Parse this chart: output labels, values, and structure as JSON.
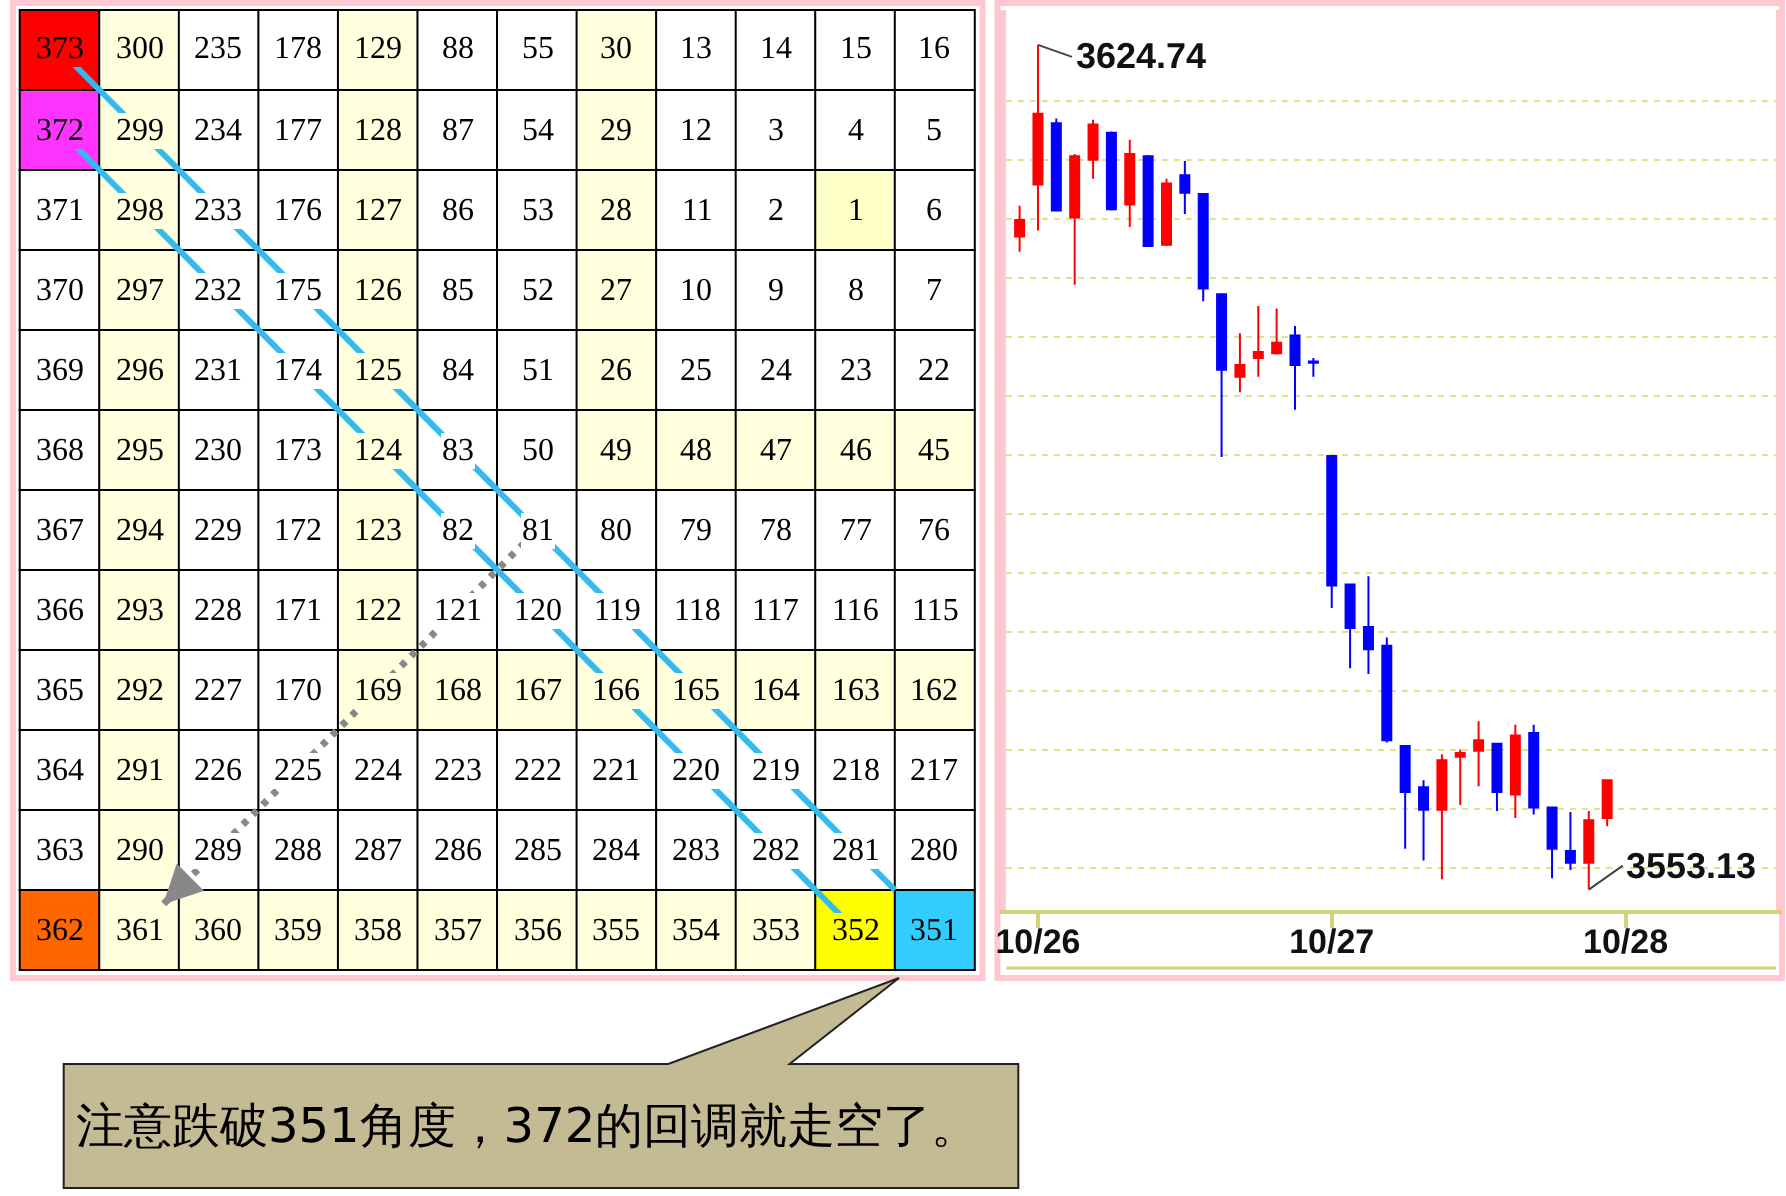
{
  "chart_data": [
    {
      "type": "heatmap",
      "categories": [
        null,
        null,
        null,
        null,
        null,
        null,
        null,
        null,
        null,
        null,
        null,
        null
      ],
      "y_categories": [
        null,
        null,
        null,
        null,
        null,
        null,
        null,
        null,
        null,
        null,
        null,
        null
      ],
      "cells": [
        [
          373,
          300,
          235,
          178,
          129,
          88,
          55,
          30,
          13,
          14,
          15,
          16
        ],
        [
          372,
          299,
          234,
          177,
          128,
          87,
          54,
          29,
          12,
          3,
          4,
          5
        ],
        [
          371,
          298,
          233,
          176,
          127,
          86,
          53,
          28,
          11,
          2,
          1,
          6
        ],
        [
          370,
          297,
          232,
          175,
          126,
          85,
          52,
          27,
          10,
          9,
          8,
          7
        ],
        [
          369,
          296,
          231,
          174,
          125,
          84,
          51,
          26,
          25,
          24,
          23,
          22
        ],
        [
          368,
          295,
          230,
          173,
          124,
          83,
          50,
          49,
          48,
          47,
          46,
          45
        ],
        [
          367,
          294,
          229,
          172,
          123,
          82,
          81,
          80,
          79,
          78,
          77,
          76
        ],
        [
          366,
          293,
          228,
          171,
          122,
          121,
          120,
          119,
          118,
          117,
          116,
          115
        ],
        [
          365,
          292,
          227,
          170,
          169,
          168,
          167,
          166,
          165,
          164,
          163,
          162
        ],
        [
          364,
          291,
          226,
          225,
          224,
          223,
          222,
          221,
          220,
          219,
          218,
          217
        ],
        [
          363,
          290,
          289,
          288,
          287,
          286,
          285,
          284,
          283,
          282,
          281,
          280
        ],
        [
          362,
          361,
          360,
          359,
          358,
          357,
          356,
          355,
          354,
          353,
          352,
          351
        ]
      ],
      "colors": [
        [
          "#ff0000",
          "#ffffde",
          "#ffffff",
          "#ffffff",
          "#ffffde",
          "#ffffff",
          "#ffffff",
          "#ffffde",
          "#ffffff",
          "#ffffff",
          "#ffffff",
          "#ffffff"
        ],
        [
          "#ff33ff",
          "#ffffde",
          "#ffffff",
          "#ffffff",
          "#ffffde",
          "#ffffff",
          "#ffffff",
          "#ffffde",
          "#ffffff",
          "#ffffff",
          "#ffffff",
          "#ffffff"
        ],
        [
          "#ffffff",
          "#ffffde",
          "#ffffff",
          "#ffffff",
          "#ffffde",
          "#ffffff",
          "#ffffff",
          "#ffffde",
          "#ffffff",
          "#ffffff",
          "#ffffc8",
          "#ffffff"
        ],
        [
          "#ffffff",
          "#ffffde",
          "#ffffff",
          "#ffffff",
          "#ffffde",
          "#ffffff",
          "#ffffff",
          "#ffffde",
          "#ffffff",
          "#ffffff",
          "#ffffff",
          "#ffffff"
        ],
        [
          "#ffffff",
          "#ffffde",
          "#ffffff",
          "#ffffff",
          "#ffffde",
          "#ffffff",
          "#ffffff",
          "#ffffde",
          "#ffffff",
          "#ffffff",
          "#ffffff",
          "#ffffff"
        ],
        [
          "#ffffff",
          "#ffffde",
          "#ffffff",
          "#ffffff",
          "#ffffde",
          "#ffffff",
          "#ffffff",
          "#ffffde",
          "#ffffde",
          "#ffffde",
          "#ffffde",
          "#ffffde"
        ],
        [
          "#ffffff",
          "#ffffde",
          "#ffffff",
          "#ffffff",
          "#ffffde",
          "#ffffff",
          "#ffffff",
          "#ffffff",
          "#ffffff",
          "#ffffff",
          "#ffffff",
          "#ffffff"
        ],
        [
          "#ffffff",
          "#ffffde",
          "#ffffff",
          "#ffffff",
          "#ffffde",
          "#ffffff",
          "#ffffff",
          "#ffffff",
          "#ffffff",
          "#ffffff",
          "#ffffff",
          "#ffffff"
        ],
        [
          "#ffffff",
          "#ffffde",
          "#ffffff",
          "#ffffff",
          "#ffffde",
          "#ffffde",
          "#ffffde",
          "#ffffde",
          "#ffffde",
          "#ffffde",
          "#ffffde",
          "#ffffde"
        ],
        [
          "#ffffff",
          "#ffffde",
          "#ffffff",
          "#ffffff",
          "#ffffff",
          "#ffffff",
          "#ffffff",
          "#ffffff",
          "#ffffff",
          "#ffffff",
          "#ffffff",
          "#ffffff"
        ],
        [
          "#ffffff",
          "#ffffde",
          "#ffffff",
          "#ffffff",
          "#ffffff",
          "#ffffff",
          "#ffffff",
          "#ffffff",
          "#ffffff",
          "#ffffff",
          "#ffffff",
          "#ffffff"
        ],
        [
          "#ff6600",
          "#ffffde",
          "#ffffde",
          "#ffffde",
          "#ffffde",
          "#ffffde",
          "#ffffde",
          "#ffffde",
          "#ffffde",
          "#ffffde",
          "#ffff00",
          "#33ccff"
        ]
      ],
      "data_labels": true,
      "tick_labels": false,
      "annotations": [
        "注意跌破351角度，372的回调就走空了。"
      ]
    },
    {
      "type": "candlestick",
      "categories": [
        null,
        "10/26",
        null,
        null,
        null,
        null,
        null,
        null,
        null,
        null,
        null,
        null,
        null,
        null,
        null,
        null,
        null,
        "10/27",
        null,
        null,
        null,
        null,
        null,
        null,
        null,
        null,
        null,
        null,
        null,
        null,
        null,
        null,
        null,
        "10/28"
      ],
      "ohlc": [
        [
          3608.5,
          3611.1,
          3607.2,
          3609.9
        ],
        [
          3612.9,
          3624.74,
          3609.0,
          3618.9
        ],
        [
          3618.1,
          3618.5,
          3610.7,
          3610.7
        ],
        [
          3610.1,
          3615.5,
          3604.4,
          3615.3
        ],
        [
          3615.0,
          3618.4,
          3613.4,
          3618.0
        ],
        [
          3617.3,
          3617.4,
          3610.7,
          3610.8
        ],
        [
          3611.2,
          3616.7,
          3609.3,
          3615.5
        ],
        [
          3615.3,
          3615.4,
          3607.7,
          3607.7
        ],
        [
          3607.8,
          3613.4,
          3607.7,
          3613.0
        ],
        [
          3613.7,
          3614.9,
          3610.4,
          3612.2
        ],
        [
          3612.1,
          3612.1,
          3603.0,
          3604.1
        ],
        [
          3603.6,
          3603.6,
          3589.8,
          3597.2
        ],
        [
          3596.6,
          3600.3,
          3595.3,
          3597.6
        ],
        [
          3598.2,
          3602.6,
          3596.6,
          3598.7
        ],
        [
          3598.6,
          3602.4,
          3598.5,
          3599.5
        ],
        [
          3600.1,
          3600.9,
          3593.8,
          3597.6
        ],
        [
          3597.9,
          3598.2,
          3596.6,
          3597.8
        ],
        [
          3589.9,
          3589.9,
          3577.0,
          3578.9
        ],
        [
          3579.0,
          3579.0,
          3571.9,
          3575.3
        ],
        [
          3575.4,
          3579.7,
          3571.4,
          3573.5
        ],
        [
          3573.8,
          3574.5,
          3565.6,
          3565.8
        ],
        [
          3565.3,
          3565.3,
          3556.6,
          3561.4
        ],
        [
          3561.8,
          3562.4,
          3555.6,
          3559.9
        ],
        [
          3559.9,
          3564.6,
          3554.0,
          3564.1
        ],
        [
          3564.4,
          3565.0,
          3560.3,
          3564.7
        ],
        [
          3564.9,
          3567.4,
          3561.9,
          3565.8
        ],
        [
          3565.5,
          3565.5,
          3559.8,
          3561.4
        ],
        [
          3561.2,
          3567.1,
          3559.2,
          3566.2
        ],
        [
          3566.4,
          3567.1,
          3559.5,
          3560.1
        ],
        [
          3560.1,
          3560.1,
          3554.1,
          3556.6
        ],
        [
          3556.4,
          3559.7,
          3554.8,
          3555.4
        ],
        [
          3555.4,
          3559.8,
          3553.13,
          3559.0
        ],
        [
          3559.2,
          3562.4,
          3558.5,
          3562.4
        ],
        null
      ],
      "colors": [
        "#ff0000",
        "#ff0000",
        "#0000ff",
        "#ff0000",
        "#ff0000",
        "#0000ff",
        "#ff0000",
        "#0000ff",
        "#ff0000",
        "#0000ff",
        "#0000ff",
        "#0000ff",
        "#ff0000",
        "#ff0000",
        "#ff0000",
        "#0000ff",
        "#0000ff",
        "#0000ff",
        "#0000ff",
        "#0000ff",
        "#0000ff",
        "#0000ff",
        "#0000ff",
        "#ff0000",
        "#ff0000",
        "#ff0000",
        "#0000ff",
        "#ff0000",
        "#0000ff",
        "#0000ff",
        "#0000ff",
        "#ff0000",
        "#ff0000",
        null
      ],
      "ylim": [
        3551.4,
        3627.7
      ],
      "yticks": [
        {
          "value": 3555,
          "label": null
        },
        {
          "value": 3560,
          "label": null
        },
        {
          "value": 3565,
          "label": null
        },
        {
          "value": 3570,
          "label": null
        },
        {
          "value": 3575,
          "label": null
        },
        {
          "value": 3580,
          "label": null
        },
        {
          "value": 3585,
          "label": null
        },
        {
          "value": 3590,
          "label": null
        },
        {
          "value": 3595,
          "label": null
        },
        {
          "value": 3600,
          "label": null
        },
        {
          "value": 3605,
          "label": null
        },
        {
          "value": 3610,
          "label": null
        },
        {
          "value": 3615,
          "label": null
        },
        {
          "value": 3620,
          "label": null
        }
      ],
      "grid": "y",
      "tick_labels": "x",
      "annotations": [
        "3624.74",
        "3553.13"
      ]
    }
  ]
}
